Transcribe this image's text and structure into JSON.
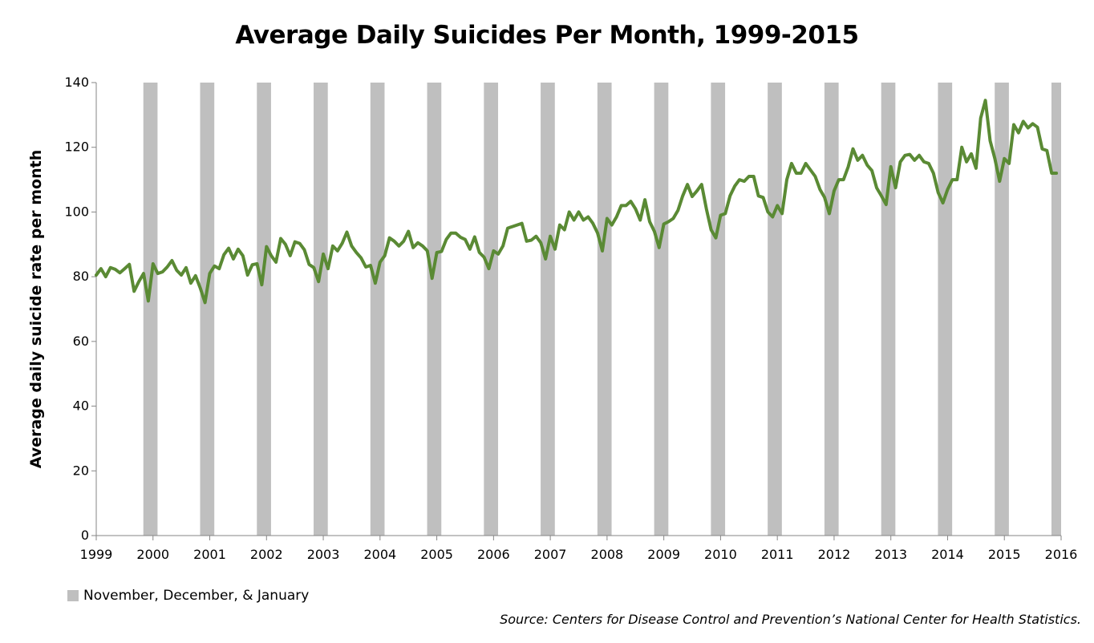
{
  "chart_data": {
    "type": "line",
    "title": "Average Daily Suicides Per Month, 1999-2015",
    "xlabel": "",
    "ylabel": "Average daily suicide rate per month",
    "ylim": [
      0,
      140
    ],
    "y_ticks": [
      "0",
      "20",
      "40",
      "60",
      "80",
      "100",
      "120",
      "140"
    ],
    "x_range": [
      1999,
      2016
    ],
    "x_ticks": [
      "1999",
      "2000",
      "2001",
      "2002",
      "2003",
      "2004",
      "2005",
      "2006",
      "2007",
      "2008",
      "2009",
      "2010",
      "2011",
      "2012",
      "2013",
      "2014",
      "2015",
      "2016"
    ],
    "grid": false,
    "shaded_periods": {
      "label": "November, December, & January",
      "color": "#bfbfbf",
      "periods": [
        [
          1999.83,
          2000.08
        ],
        [
          2000.83,
          2001.08
        ],
        [
          2001.83,
          2002.08
        ],
        [
          2002.83,
          2003.08
        ],
        [
          2003.83,
          2004.08
        ],
        [
          2004.83,
          2005.08
        ],
        [
          2005.83,
          2006.08
        ],
        [
          2006.83,
          2007.08
        ],
        [
          2007.83,
          2008.08
        ],
        [
          2008.83,
          2009.08
        ],
        [
          2009.83,
          2010.08
        ],
        [
          2010.83,
          2011.08
        ],
        [
          2011.83,
          2012.08
        ],
        [
          2012.83,
          2013.08
        ],
        [
          2013.83,
          2014.08
        ],
        [
          2014.83,
          2015.08
        ],
        [
          2015.83,
          2016.0
        ]
      ]
    },
    "series": [
      {
        "name": "Average daily suicides",
        "color": "#5a8a34",
        "start_year": 1999,
        "period": "monthly",
        "values": [
          80.5,
          82.5,
          80,
          82.8,
          82.3,
          81.2,
          82.5,
          83.8,
          75.5,
          78.5,
          81,
          72.5,
          84,
          81,
          81.5,
          83,
          85,
          82,
          80.5,
          82.8,
          78,
          80.3,
          76.5,
          72,
          81,
          83.3,
          82.5,
          86.8,
          88.8,
          85.5,
          88.5,
          86.5,
          80.5,
          83.7,
          84,
          77.5,
          89.3,
          86.5,
          84.5,
          91.8,
          90,
          86.5,
          90.8,
          90.3,
          88.3,
          83.8,
          82.8,
          78.5,
          87,
          82.5,
          89.5,
          88,
          90.3,
          93.8,
          89.5,
          87.5,
          85.8,
          83,
          83.5,
          78,
          84.5,
          86.5,
          92,
          91,
          89.5,
          91,
          94,
          89,
          90.5,
          89.5,
          88,
          79.5,
          87.5,
          87.8,
          91.5,
          93.5,
          93.5,
          92.2,
          91.5,
          88.5,
          92.3,
          87.5,
          86,
          82.5,
          88,
          87,
          89.5,
          95,
          95.5,
          96,
          96.5,
          91,
          91.3,
          92.5,
          90.5,
          85.5,
          92.5,
          88.5,
          96,
          94.5,
          100,
          97.5,
          100,
          97.5,
          98.5,
          96.5,
          93.5,
          88,
          98,
          96,
          98.5,
          102,
          102,
          103.3,
          101,
          97.5,
          103.8,
          97,
          94,
          89,
          96.3,
          97,
          98,
          100.5,
          105,
          108.5,
          104.8,
          106.5,
          108.5,
          101,
          94.5,
          92,
          99,
          99.5,
          105,
          108,
          110,
          109.5,
          111,
          111,
          105,
          104.5,
          100,
          98.5,
          102,
          99.5,
          110,
          115,
          112,
          112,
          115,
          113,
          111,
          107,
          104.5,
          99.5,
          106.5,
          110,
          110,
          114,
          119.5,
          116,
          117.5,
          114.5,
          112.8,
          107.5,
          105,
          102.3,
          114,
          107.5,
          115.5,
          117.5,
          117.8,
          116,
          117.5,
          115.5,
          115,
          112,
          106,
          102.8,
          107,
          110,
          110,
          120,
          115.5,
          118,
          113.5,
          129,
          134.5,
          122,
          116.5,
          109.5,
          116.5,
          115,
          127,
          124.5,
          128,
          126,
          127.3,
          126.2,
          119.5,
          119,
          112,
          112
        ]
      }
    ]
  },
  "legend": {
    "label": "November, December, & January",
    "color": "#bfbfbf"
  },
  "source_note": "Source: Centers for Disease Control and Prevention’s National Center for Health Statistics."
}
